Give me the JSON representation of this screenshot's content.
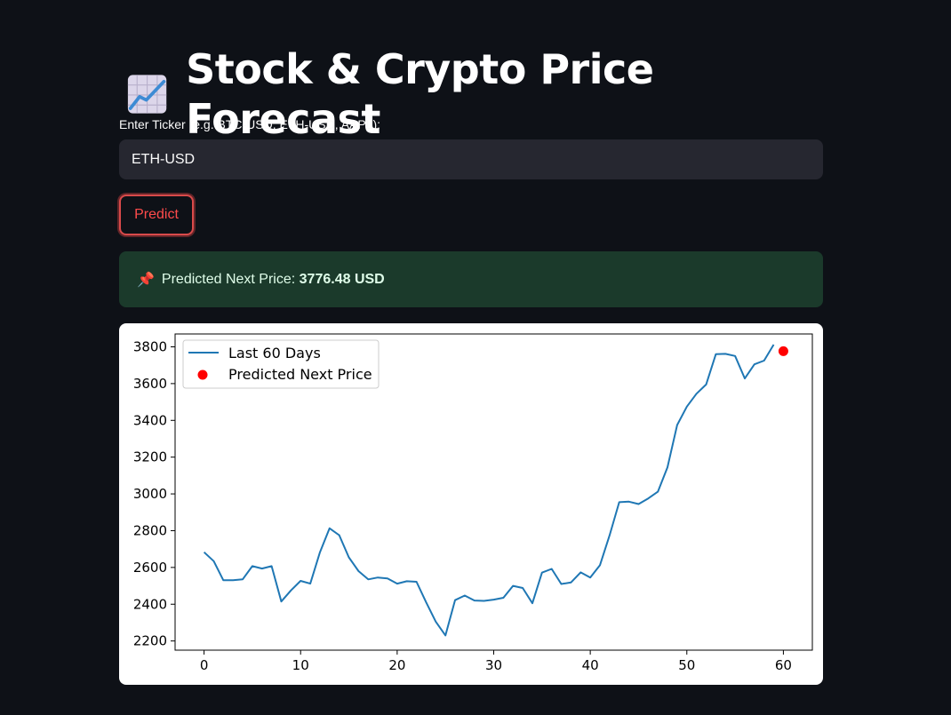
{
  "header": {
    "icon": "chart-increasing-icon",
    "title": "Stock & Crypto Price Forecast"
  },
  "ticker": {
    "label": "Enter Ticker (e.g. BTC-USD, ETH-USD, AAPL):",
    "value": "ETH-USD"
  },
  "predict_button": {
    "label": "Predict"
  },
  "result": {
    "icon": "pushpin-icon",
    "prefix": "Predicted Next Price: ",
    "value": "3776.48 USD"
  },
  "colors": {
    "background": "#0e1117",
    "input_bg": "#262730",
    "accent_red": "#ff4b4b",
    "success_bg": "#1b3a2b",
    "line": "#1f77b4",
    "point": "#ff0000"
  },
  "chart_data": {
    "type": "line",
    "title": "",
    "xlabel": "",
    "ylabel": "",
    "xlim": [
      -3,
      63
    ],
    "ylim": [
      2150,
      3870
    ],
    "xticks": [
      0,
      10,
      20,
      30,
      40,
      50,
      60
    ],
    "yticks": [
      2200,
      2400,
      2600,
      2800,
      3000,
      3200,
      3400,
      3600,
      3800
    ],
    "grid": false,
    "legend_position": "upper-left",
    "series": [
      {
        "name": "Last 60 Days",
        "type": "line",
        "x": [
          0,
          1,
          2,
          3,
          4,
          5,
          6,
          7,
          8,
          9,
          10,
          11,
          12,
          13,
          14,
          15,
          16,
          17,
          18,
          19,
          20,
          21,
          22,
          23,
          24,
          25,
          26,
          27,
          28,
          29,
          30,
          31,
          32,
          33,
          34,
          35,
          36,
          37,
          38,
          39,
          40,
          41,
          42,
          43,
          44,
          45,
          46,
          47,
          48,
          49,
          50,
          51,
          52,
          53,
          54,
          55,
          56,
          57,
          58,
          59
        ],
        "values": [
          2683,
          2634,
          2530,
          2530,
          2535,
          2607,
          2594,
          2607,
          2415,
          2475,
          2527,
          2512,
          2683,
          2813,
          2775,
          2655,
          2580,
          2535,
          2545,
          2540,
          2512,
          2525,
          2522,
          2410,
          2305,
          2230,
          2422,
          2447,
          2420,
          2418,
          2425,
          2435,
          2500,
          2488,
          2405,
          2572,
          2592,
          2510,
          2518,
          2573,
          2545,
          2612,
          2775,
          2955,
          2958,
          2945,
          2975,
          3012,
          3145,
          3375,
          3475,
          3545,
          3595,
          3760,
          3762,
          3750,
          3628,
          3705,
          3725,
          3812
        ]
      },
      {
        "name": "Predicted Next Price",
        "type": "scatter",
        "x": [
          60
        ],
        "values": [
          3776.48
        ]
      }
    ]
  }
}
